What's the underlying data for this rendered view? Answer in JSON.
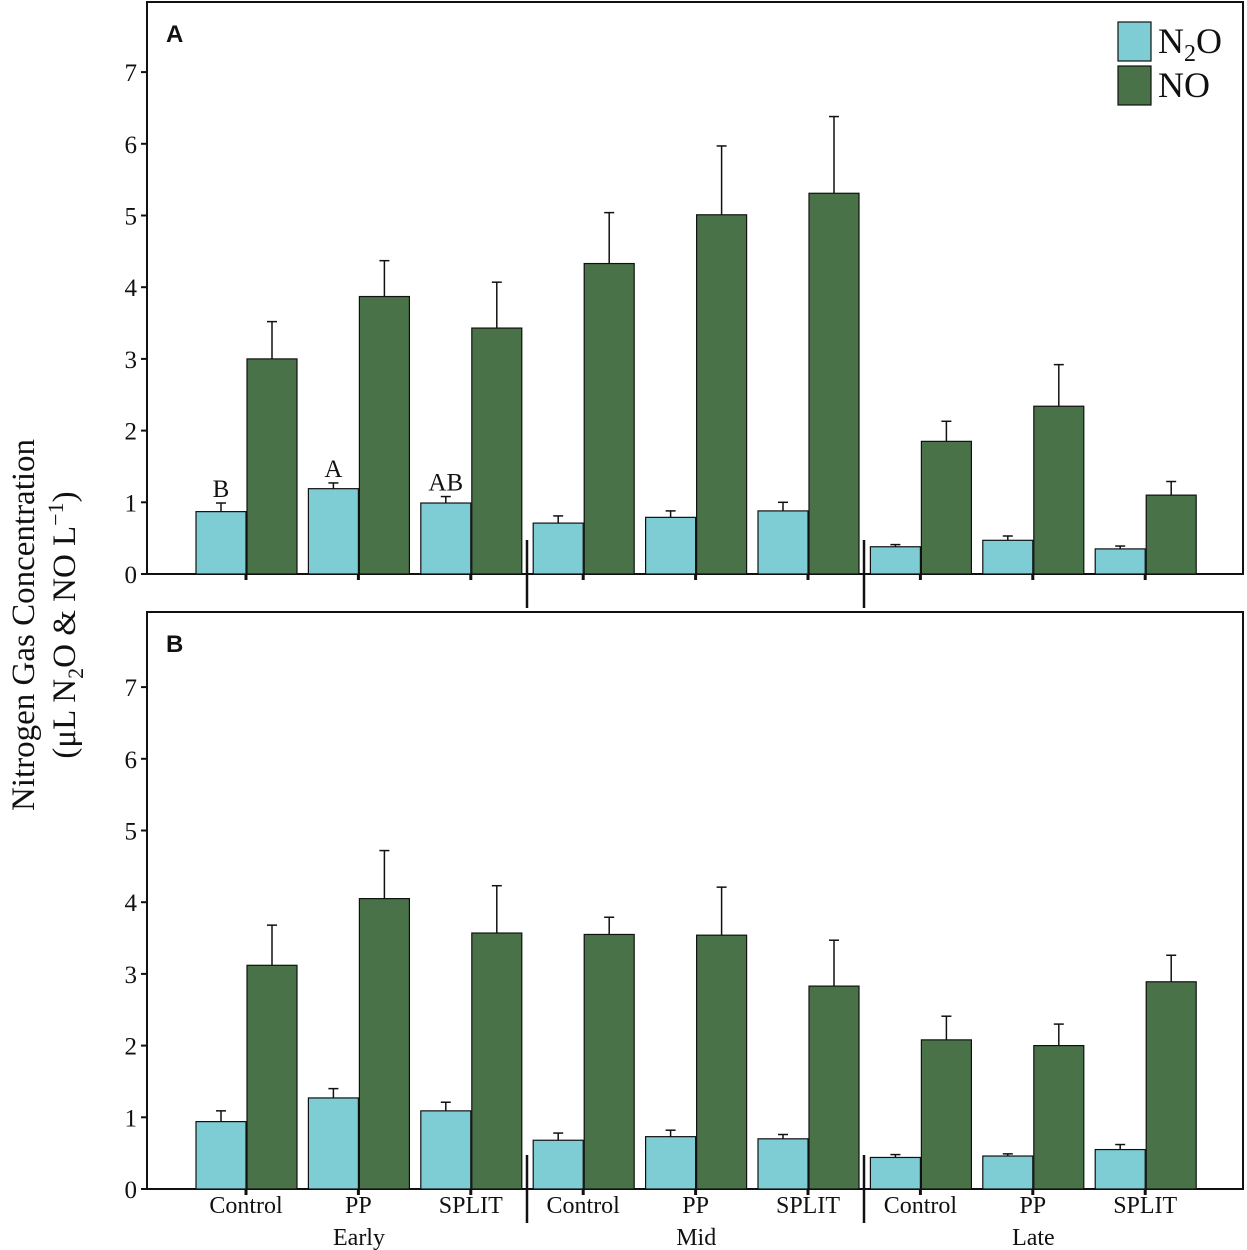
{
  "chart_data": {
    "type": "bar",
    "ylabel_line1": "Nitrogen Gas Concentration",
    "ylabel_line2": {
      "open": "(",
      "p1": "μL N",
      "sub": "2",
      "p2": "O & NO L",
      "sup": "−1",
      "close": ")"
    },
    "ylim": [
      0,
      8
    ],
    "yticks": [
      0,
      1,
      2,
      3,
      4,
      5,
      6,
      7
    ],
    "groups": [
      "Early",
      "Mid",
      "Late"
    ],
    "categories": [
      "Control",
      "PP",
      "SPLIT",
      "Control",
      "PP",
      "SPLIT",
      "Control",
      "PP",
      "SPLIT"
    ],
    "legend": {
      "position": "top-right",
      "entries": [
        {
          "key": "n2o",
          "base": "N",
          "sub": "2",
          "rest": "O"
        },
        {
          "key": "no",
          "base": "NO",
          "sub": "",
          "rest": ""
        }
      ]
    },
    "colors": {
      "n2o": "#7ecdd4",
      "no": "#4a7248",
      "axis": "#111111"
    },
    "panels": [
      {
        "letter": "A",
        "series": [
          {
            "key": "n2o",
            "name": "N2O",
            "values": [
              0.87,
              1.19,
              0.99,
              0.71,
              0.79,
              0.88,
              0.38,
              0.47,
              0.35
            ],
            "errors": [
              0.12,
              0.08,
              0.09,
              0.1,
              0.09,
              0.12,
              0.03,
              0.06,
              0.04
            ],
            "labels": [
              "B",
              "A",
              "AB",
              "",
              "",
              "",
              "",
              "",
              ""
            ]
          },
          {
            "key": "no",
            "name": "NO",
            "values": [
              3.0,
              3.87,
              3.43,
              4.33,
              5.01,
              5.31,
              1.85,
              2.34,
              1.1
            ],
            "errors": [
              0.52,
              0.5,
              0.64,
              0.71,
              0.96,
              1.07,
              0.28,
              0.58,
              0.19
            ]
          }
        ]
      },
      {
        "letter": "B",
        "series": [
          {
            "key": "n2o",
            "name": "N2O",
            "values": [
              0.94,
              1.27,
              1.09,
              0.68,
              0.73,
              0.7,
              0.44,
              0.46,
              0.55
            ],
            "errors": [
              0.15,
              0.13,
              0.12,
              0.1,
              0.09,
              0.06,
              0.04,
              0.03,
              0.07
            ],
            "labels": [
              "",
              "",
              "",
              "",
              "",
              "",
              "",
              "",
              ""
            ]
          },
          {
            "key": "no",
            "name": "NO",
            "values": [
              3.12,
              4.05,
              3.57,
              3.55,
              3.54,
              2.83,
              2.08,
              2.0,
              2.89
            ],
            "errors": [
              0.56,
              0.67,
              0.66,
              0.24,
              0.67,
              0.64,
              0.33,
              0.3,
              0.37
            ]
          }
        ]
      }
    ]
  }
}
